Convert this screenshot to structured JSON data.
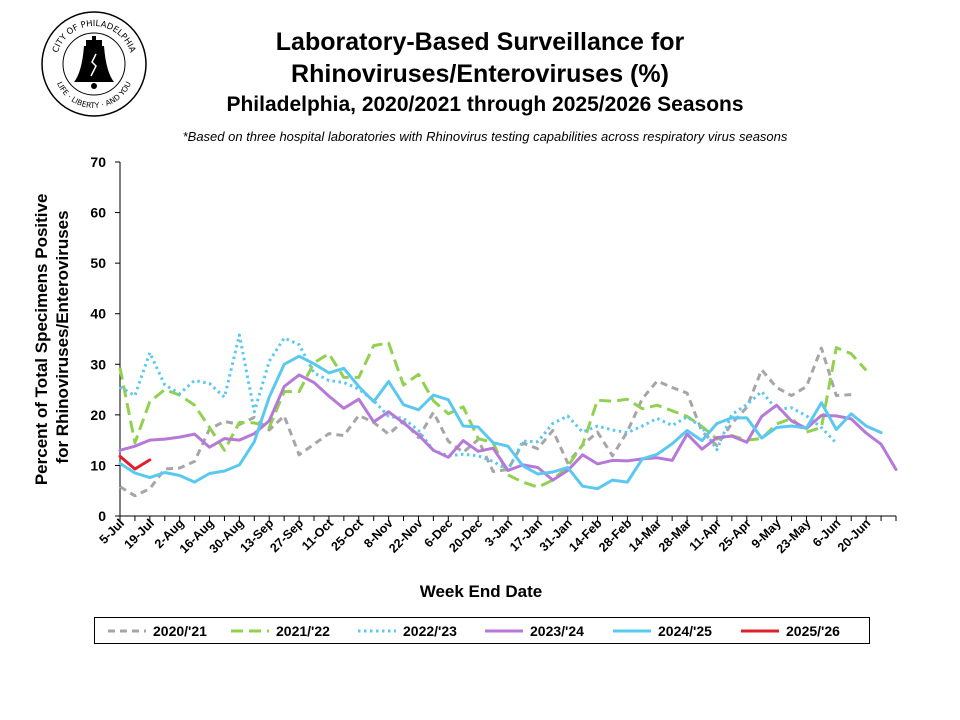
{
  "header": {
    "title_line1": "Laboratory-Based Surveillance for",
    "title_line2": "Rhinoviruses/Enteroviruses (%)",
    "subtitle": "Philadelphia, 2020/2021 through 2025/2026 Seasons",
    "note": "*Based on three hospital laboratories with Rhinovirus testing capabilities across respiratory virus seasons"
  },
  "seal": {
    "icon": "city-of-philadelphia-seal-icon",
    "ring_top": "CITY OF PHILADELPHIA",
    "ring_bottom": "LIFE · LIBERTY · AND YOU"
  },
  "chart_data": {
    "type": "line",
    "title": "Laboratory-Based Surveillance for Rhinoviruses/Enteroviruses (%)",
    "subtitle": "Philadelphia, 2020/2021 through 2025/2026 Seasons",
    "xlabel": "Week End Date",
    "ylabel": "Percent of Total Specimens Positive for Rhinoviruses/Enteroviruses",
    "ylim": [
      0,
      70
    ],
    "yticks": [
      0,
      10,
      20,
      30,
      40,
      50,
      60,
      70
    ],
    "grid": false,
    "legend_position": "bottom",
    "x_weeks": 53,
    "xtick_labels": [
      "5-Jul",
      "19-Jul",
      "2-Aug",
      "16-Aug",
      "30-Aug",
      "13-Sep",
      "27-Sep",
      "11-Oct",
      "25-Oct",
      "8-Nov",
      "22-Nov",
      "6-Dec",
      "20-Dec",
      "3-Jan",
      "17-Jan",
      "31-Jan",
      "14-Feb",
      "28-Feb",
      "14-Mar",
      "28-Mar",
      "11-Apr",
      "25-Apr",
      "9-May",
      "23-May",
      "6-Jun",
      "20-Jun"
    ],
    "series": [
      {
        "name": "2020/'21",
        "color": "#a6a6a6",
        "dash": "7,5",
        "values": [
          5.8,
          4,
          5.4,
          9.3,
          9.5,
          10.8,
          17.2,
          18.7,
          18.1,
          19.5,
          17,
          19.8,
          12.1,
          14.2,
          16.3,
          15.9,
          19.9,
          18.5,
          16.2,
          18.7,
          15.5,
          20.5,
          14.8,
          12.6,
          15.1,
          8.8,
          9.2,
          14.4,
          13.3,
          16.9,
          10.5,
          14,
          16.6,
          11.9,
          16.7,
          23.2,
          26.7,
          25.4,
          24.3,
          16.7,
          13.9,
          18.3,
          21.5,
          28.9,
          25.4,
          23.8,
          25.6,
          33.2,
          23.8,
          24
        ]
      },
      {
        "name": "2021/'22",
        "color": "#92d050",
        "dash": "12,6",
        "values": [
          29.3,
          14.5,
          22.6,
          25,
          23.9,
          21.9,
          17.5,
          13,
          18.5,
          18.4,
          17.5,
          24.6,
          24.6,
          30.3,
          32.1,
          27.4,
          27.4,
          33.7,
          34.2,
          25.9,
          28,
          22.8,
          20.2,
          21.6,
          15.3,
          14.5,
          8.1,
          6.7,
          5.7,
          7.1,
          9.8,
          14.1,
          22.9,
          22.7,
          23.1,
          21.2,
          21.9,
          20.8,
          19.7,
          17.7,
          15.2,
          15.9,
          15,
          15.3,
          18.2,
          19.3,
          16.6,
          17.5,
          33.3,
          32.1,
          28.8
        ]
      },
      {
        "name": "2022/'23",
        "color": "#5bc8f0",
        "dash": "2.5,3.5",
        "values": [
          25.5,
          23.8,
          32.3,
          25.9,
          24.2,
          26.8,
          26.2,
          23.5,
          35.8,
          20.6,
          30.6,
          35.2,
          33.9,
          28.3,
          26.8,
          26.4,
          25.1,
          22.8,
          19.7,
          19.3,
          16.9,
          13,
          11.9,
          12.2,
          11.9,
          10.8,
          9.1,
          14.8,
          14.7,
          18.3,
          19.8,
          16.6,
          17.8,
          17,
          16.5,
          17.8,
          19.3,
          17.9,
          19.6,
          17.6,
          13.1,
          20.1,
          22,
          24.6,
          21.1,
          21.4,
          19.8,
          17.5,
          14.4
        ]
      },
      {
        "name": "2023/'24",
        "color": "#b679d8",
        "values": [
          13,
          13.8,
          15,
          15.2,
          15.6,
          16.2,
          13.6,
          15.3,
          15,
          16.3,
          18.8,
          25.6,
          27.9,
          26.4,
          23.7,
          21.3,
          23.1,
          18.6,
          20.6,
          18.4,
          16,
          13,
          11.6,
          14.9,
          12.8,
          13.4,
          9,
          10.1,
          9.6,
          7.1,
          9,
          12.1,
          10.3,
          11,
          10.9,
          11.3,
          11.5,
          11,
          16.2,
          13.2,
          15.5,
          15.8,
          14.6,
          19.7,
          21.9,
          18.8,
          17.3,
          19.9,
          19.8,
          19.2,
          16.4,
          14.2,
          9.2
        ]
      },
      {
        "name": "2024/'25",
        "color": "#5bc8f0",
        "values": [
          10.4,
          8.5,
          7.6,
          8.6,
          8,
          6.7,
          8.4,
          8.9,
          10.1,
          14.7,
          23.5,
          30,
          31.6,
          30.1,
          28.3,
          29.2,
          25.6,
          22.6,
          26.6,
          22,
          21,
          23.9,
          23,
          17.8,
          17.6,
          14.5,
          13.8,
          9.9,
          8.3,
          8.7,
          9.6,
          5.9,
          5.4,
          7.1,
          6.7,
          11.3,
          12.2,
          14.3,
          16.9,
          14.9,
          18.3,
          19.4,
          19.4,
          15.4,
          17.5,
          17.8,
          17.4,
          22.4,
          17.1,
          20.2,
          17.8,
          16.5
        ]
      },
      {
        "name": "2025/'26",
        "color": "#e0202a",
        "values": [
          11.8,
          9.3,
          11.1
        ]
      }
    ]
  },
  "legend": {
    "items": [
      {
        "label": "2020/'21",
        "color": "#a6a6a6",
        "dash": "7,5"
      },
      {
        "label": "2021/'22",
        "color": "#92d050",
        "dash": "12,6"
      },
      {
        "label": "2022/'23",
        "color": "#5bc8f0",
        "dash": "2.5,3.5"
      },
      {
        "label": "2023/'24",
        "color": "#b679d8",
        "dash": ""
      },
      {
        "label": "2024/'25",
        "color": "#5bc8f0",
        "dash": ""
      },
      {
        "label": "2025/'26",
        "color": "#e0202a",
        "dash": ""
      }
    ]
  }
}
